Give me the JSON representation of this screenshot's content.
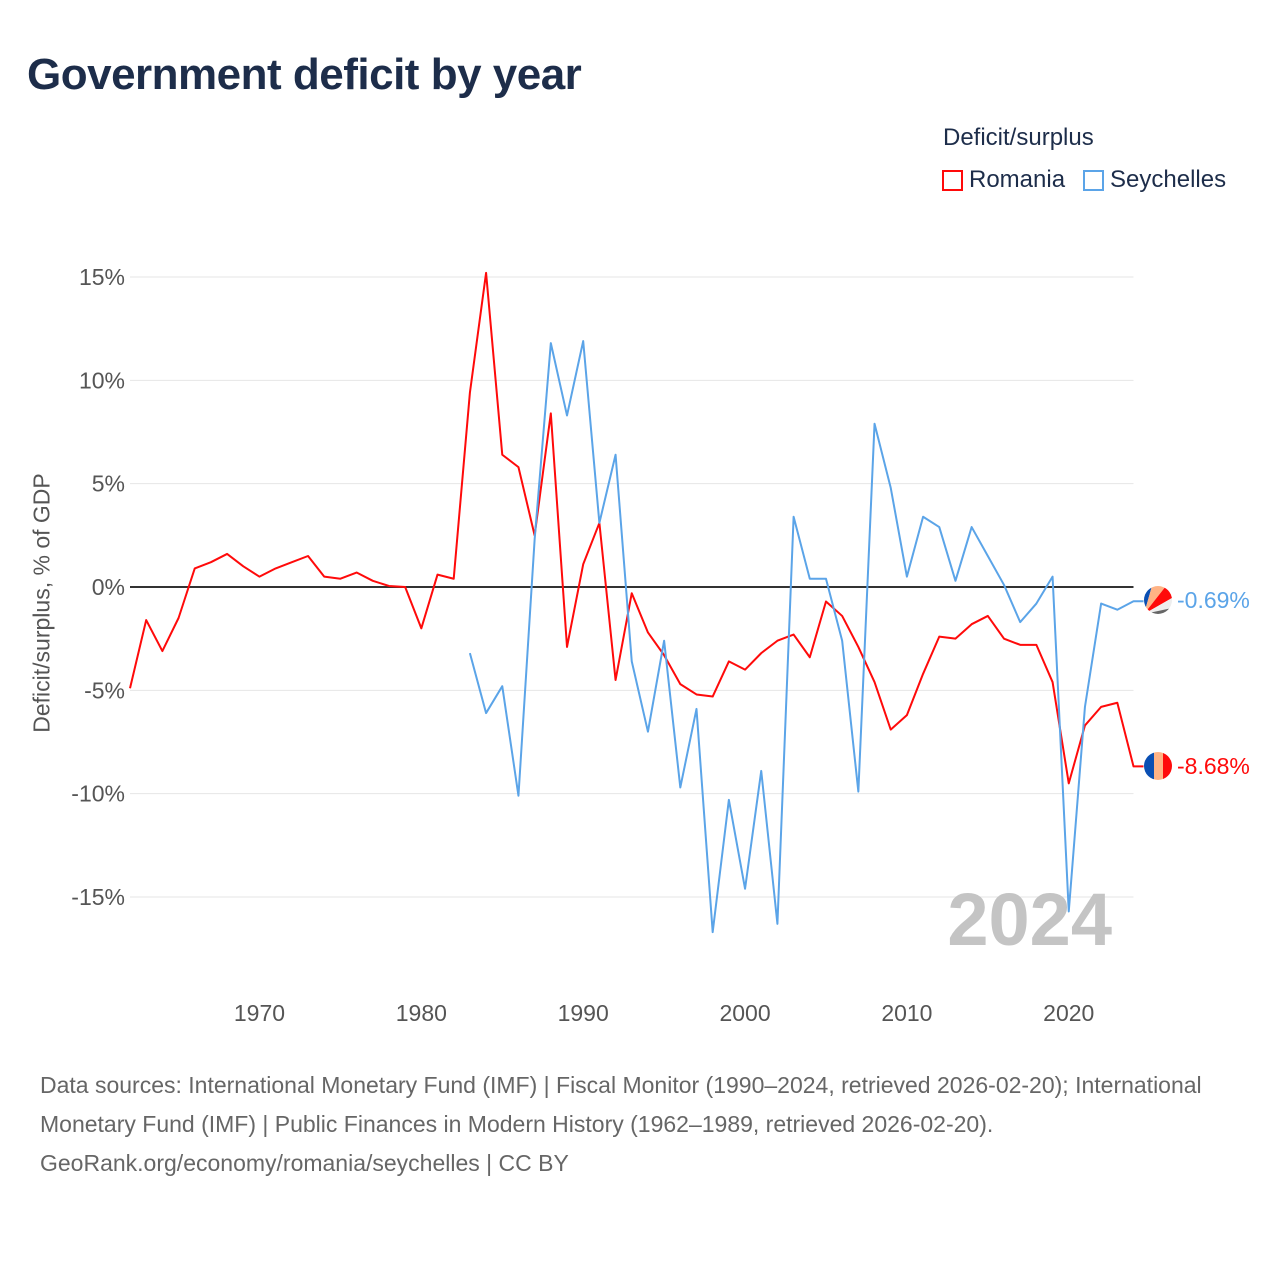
{
  "colors": {
    "Romania": "#ff0a0a",
    "Seychelles": "#5ba4e8"
  },
  "chart_data": {
    "type": "line",
    "title": "Government deficit by year",
    "xlabel": "",
    "ylabel": "Deficit/surplus, % of GDP",
    "ylim": [
      -18,
      17
    ],
    "xlim": [
      1962,
      2024
    ],
    "yticks": [
      15,
      10,
      5,
      0,
      -5,
      -10,
      -15
    ],
    "ytick_labels": [
      "15%",
      "10%",
      "5%",
      "0%",
      "-5%",
      "-10%",
      "-15%"
    ],
    "xticks": [
      1970,
      1980,
      1990,
      2000,
      2010,
      2020
    ],
    "xtick_labels": [
      "1970",
      "1980",
      "1990",
      "2000",
      "2010",
      "2020"
    ],
    "legend_title": "Deficit/surplus",
    "legend_position": "top-right",
    "year_watermark": "2024",
    "series": [
      {
        "name": "Romania",
        "start_year": 1962,
        "end_label": "-8.68%",
        "values": [
          -4.9,
          -1.6,
          -3.1,
          -1.5,
          0.9,
          1.2,
          1.6,
          1.0,
          0.5,
          0.9,
          1.2,
          1.5,
          0.5,
          0.4,
          0.7,
          0.3,
          0.05,
          0,
          -2.0,
          0.6,
          0.4,
          9.4,
          15.2,
          6.4,
          5.8,
          2.5,
          8.4,
          -2.9,
          1.1,
          3.1,
          -4.5,
          -0.3,
          -2.2,
          -3.3,
          -4.7,
          -5.2,
          -5.3,
          -3.6,
          -4.0,
          -3.2,
          -2.6,
          -2.3,
          -3.4,
          -0.7,
          -1.4,
          -2.9,
          -4.6,
          -6.9,
          -6.2,
          -4.2,
          -2.4,
          -2.5,
          -1.8,
          -1.4,
          -2.5,
          -2.8,
          -2.8,
          -4.6,
          -9.5,
          -6.7,
          -5.8,
          -5.6,
          -8.68
        ]
      },
      {
        "name": "Seychelles",
        "start_year": 1983,
        "end_label": "-0.69%",
        "values": [
          -3.2,
          -6.1,
          -4.8,
          -10.1,
          2.3,
          11.8,
          8.3,
          11.9,
          3.1,
          6.4,
          -3.6,
          -7.0,
          -2.6,
          -9.7,
          -5.9,
          -16.7,
          -10.3,
          -14.6,
          -8.9,
          -16.3,
          3.4,
          0.4,
          0.4,
          -2.6,
          -9.9,
          7.9,
          4.8,
          0.5,
          3.4,
          2.9,
          0.3,
          2.9,
          1.5,
          0.1,
          -1.7,
          -0.8,
          0.5,
          -15.7,
          -5.8,
          -0.8,
          -1.1,
          -0.69
        ]
      }
    ]
  },
  "footer": {
    "sources": "Data sources: International Monetary Fund (IMF) | Fiscal Monitor (1990–2024, retrieved 2026-02-20); International Monetary Fund (IMF) | Public Finances in Modern History (1962–1989, retrieved 2026-02-20).",
    "link": "GeoRank.org/economy/romania/seychelles | CC BY"
  }
}
